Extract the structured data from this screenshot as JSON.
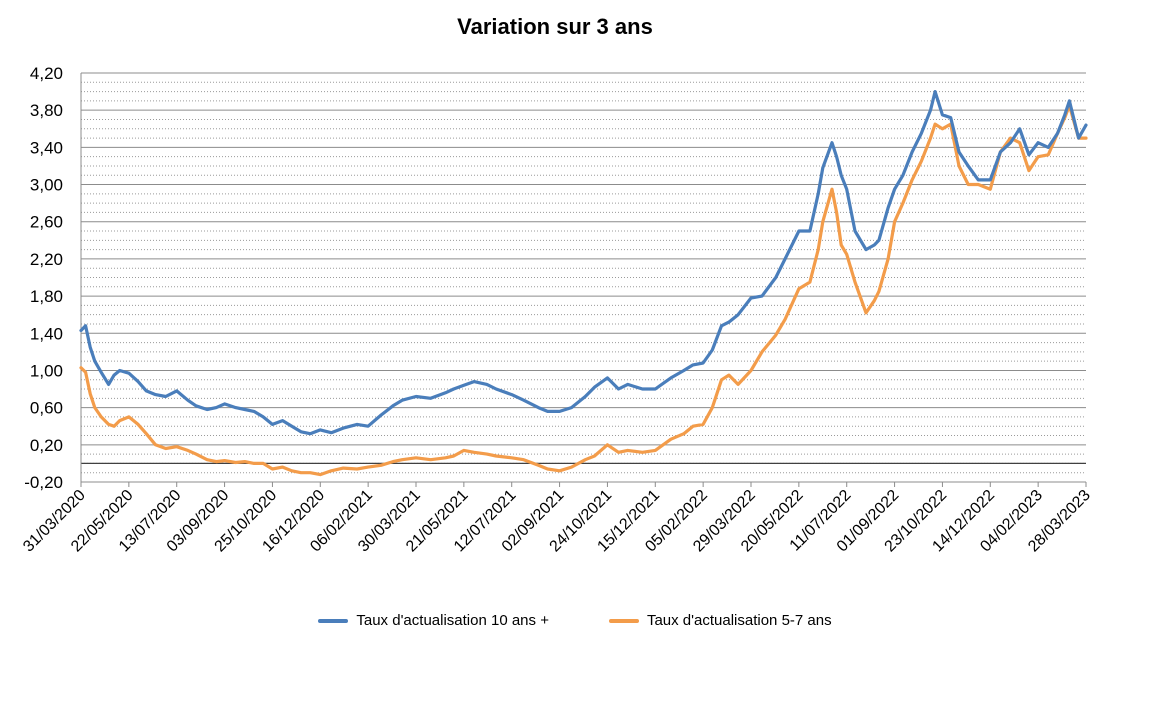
{
  "chart_data": {
    "type": "line",
    "title": "Variation sur 3 ans",
    "xlabel": "",
    "ylabel": "",
    "ylim": [
      -0.2,
      4.2
    ],
    "y_ticks": [
      "-0,20",
      "0,20",
      "0,60",
      "1,00",
      "1,40",
      "1,80",
      "2,20",
      "2,60",
      "3,00",
      "3,40",
      "3,80",
      "4,20"
    ],
    "x_ticks": [
      "31/03/2020",
      "22/05/2020",
      "13/07/2020",
      "03/09/2020",
      "25/10/2020",
      "16/12/2020",
      "06/02/2021",
      "30/03/2021",
      "21/05/2021",
      "12/07/2021",
      "02/09/2021",
      "24/10/2021",
      "15/12/2021",
      "05/02/2022",
      "29/03/2022",
      "20/05/2022",
      "11/07/2022",
      "01/09/2022",
      "23/10/2022",
      "14/12/2022",
      "04/02/2023",
      "28/03/2023"
    ],
    "grid": true,
    "legend_position": "bottom",
    "series": [
      {
        "name": "Taux d'actualisation 10 ans +",
        "color": "#4a7ebb",
        "x": [
          "31/03/2020",
          "05/04/2020",
          "10/04/2020",
          "15/04/2020",
          "22/04/2020",
          "30/04/2020",
          "06/05/2020",
          "12/05/2020",
          "22/05/2020",
          "01/06/2020",
          "10/06/2020",
          "20/06/2020",
          "01/07/2020",
          "13/07/2020",
          "25/07/2020",
          "03/08/2020",
          "15/08/2020",
          "25/08/2020",
          "03/09/2020",
          "15/09/2020",
          "25/09/2020",
          "05/10/2020",
          "15/10/2020",
          "25/10/2020",
          "05/11/2020",
          "15/11/2020",
          "25/11/2020",
          "05/12/2020",
          "16/12/2020",
          "28/12/2020",
          "10/01/2021",
          "25/01/2021",
          "06/02/2021",
          "20/02/2021",
          "05/03/2021",
          "15/03/2021",
          "30/03/2021",
          "15/04/2021",
          "01/05/2021",
          "10/05/2021",
          "21/05/2021",
          "01/06/2021",
          "15/06/2021",
          "25/06/2021",
          "12/07/2021",
          "25/07/2021",
          "10/08/2021",
          "20/08/2021",
          "02/09/2021",
          "15/09/2021",
          "30/09/2021",
          "10/10/2021",
          "24/10/2021",
          "05/11/2021",
          "15/11/2021",
          "01/12/2021",
          "15/12/2021",
          "01/01/2022",
          "15/01/2022",
          "25/01/2022",
          "05/02/2022",
          "15/02/2022",
          "25/02/2022",
          "05/03/2022",
          "15/03/2022",
          "29/03/2022",
          "10/04/2022",
          "25/04/2022",
          "05/05/2022",
          "20/05/2022",
          "01/06/2022",
          "10/06/2022",
          "15/06/2022",
          "25/06/2022",
          "30/06/2022",
          "05/07/2022",
          "11/07/2022",
          "20/07/2022",
          "01/08/2022",
          "10/08/2022",
          "15/08/2022",
          "25/08/2022",
          "01/09/2022",
          "10/09/2022",
          "20/09/2022",
          "30/09/2022",
          "10/10/2022",
          "15/10/2022",
          "23/10/2022",
          "01/11/2022",
          "10/11/2022",
          "20/11/2022",
          "01/12/2022",
          "14/12/2022",
          "25/12/2022",
          "05/01/2023",
          "15/01/2023",
          "25/01/2023",
          "04/02/2023",
          "15/02/2023",
          "25/02/2023",
          "05/03/2023",
          "10/03/2023",
          "20/03/2023",
          "28/03/2023"
        ],
        "values": [
          1.43,
          1.48,
          1.25,
          1.1,
          0.98,
          0.85,
          0.95,
          1.0,
          0.97,
          0.88,
          0.78,
          0.74,
          0.72,
          0.78,
          0.68,
          0.62,
          0.58,
          0.6,
          0.64,
          0.6,
          0.58,
          0.56,
          0.5,
          0.42,
          0.46,
          0.4,
          0.34,
          0.32,
          0.36,
          0.33,
          0.38,
          0.42,
          0.4,
          0.52,
          0.62,
          0.68,
          0.72,
          0.7,
          0.76,
          0.8,
          0.84,
          0.88,
          0.85,
          0.8,
          0.74,
          0.68,
          0.6,
          0.56,
          0.56,
          0.6,
          0.72,
          0.82,
          0.92,
          0.8,
          0.85,
          0.8,
          0.8,
          0.92,
          1.0,
          1.06,
          1.08,
          1.22,
          1.48,
          1.52,
          1.6,
          1.78,
          1.8,
          2.0,
          2.2,
          2.5,
          2.5,
          2.9,
          3.18,
          3.45,
          3.3,
          3.1,
          2.95,
          2.5,
          2.3,
          2.35,
          2.4,
          2.75,
          2.95,
          3.1,
          3.35,
          3.55,
          3.8,
          4.0,
          3.75,
          3.72,
          3.35,
          3.2,
          3.05,
          3.05,
          3.35,
          3.45,
          3.6,
          3.32,
          3.45,
          3.4,
          3.55,
          3.75,
          3.9,
          3.5,
          3.64
        ]
      },
      {
        "name": "Taux d'actualisation 5-7 ans",
        "color": "#f39c4a",
        "x": [
          "31/03/2020",
          "05/04/2020",
          "10/04/2020",
          "15/04/2020",
          "22/04/2020",
          "30/04/2020",
          "06/05/2020",
          "12/05/2020",
          "22/05/2020",
          "01/06/2020",
          "10/06/2020",
          "20/06/2020",
          "01/07/2020",
          "13/07/2020",
          "25/07/2020",
          "03/08/2020",
          "15/08/2020",
          "25/08/2020",
          "03/09/2020",
          "15/09/2020",
          "25/09/2020",
          "05/10/2020",
          "15/10/2020",
          "25/10/2020",
          "05/11/2020",
          "15/11/2020",
          "25/11/2020",
          "05/12/2020",
          "16/12/2020",
          "28/12/2020",
          "10/01/2021",
          "25/01/2021",
          "06/02/2021",
          "20/02/2021",
          "05/03/2021",
          "15/03/2021",
          "30/03/2021",
          "15/04/2021",
          "01/05/2021",
          "10/05/2021",
          "21/05/2021",
          "01/06/2021",
          "15/06/2021",
          "25/06/2021",
          "12/07/2021",
          "25/07/2021",
          "10/08/2021",
          "20/08/2021",
          "02/09/2021",
          "15/09/2021",
          "30/09/2021",
          "10/10/2021",
          "24/10/2021",
          "05/11/2021",
          "15/11/2021",
          "01/12/2021",
          "15/12/2021",
          "01/01/2022",
          "15/01/2022",
          "25/01/2022",
          "05/02/2022",
          "15/02/2022",
          "25/02/2022",
          "05/03/2022",
          "15/03/2022",
          "29/03/2022",
          "10/04/2022",
          "25/04/2022",
          "05/05/2022",
          "20/05/2022",
          "01/06/2022",
          "10/06/2022",
          "15/06/2022",
          "25/06/2022",
          "30/06/2022",
          "05/07/2022",
          "11/07/2022",
          "20/07/2022",
          "01/08/2022",
          "10/08/2022",
          "15/08/2022",
          "25/08/2022",
          "01/09/2022",
          "10/09/2022",
          "20/09/2022",
          "30/09/2022",
          "10/10/2022",
          "15/10/2022",
          "23/10/2022",
          "01/11/2022",
          "10/11/2022",
          "20/11/2022",
          "01/12/2022",
          "14/12/2022",
          "25/12/2022",
          "05/01/2023",
          "15/01/2023",
          "25/01/2023",
          "04/02/2023",
          "15/02/2023",
          "25/02/2023",
          "05/03/2023",
          "10/03/2023",
          "20/03/2023",
          "28/03/2023"
        ],
        "values": [
          1.03,
          0.98,
          0.75,
          0.6,
          0.5,
          0.42,
          0.4,
          0.46,
          0.5,
          0.42,
          0.32,
          0.2,
          0.16,
          0.18,
          0.14,
          0.1,
          0.04,
          0.02,
          0.03,
          0.01,
          0.02,
          0.0,
          0.0,
          -0.06,
          -0.04,
          -0.08,
          -0.1,
          -0.1,
          -0.12,
          -0.08,
          -0.05,
          -0.06,
          -0.04,
          -0.02,
          0.02,
          0.04,
          0.06,
          0.04,
          0.06,
          0.08,
          0.14,
          0.12,
          0.1,
          0.08,
          0.06,
          0.04,
          -0.02,
          -0.06,
          -0.08,
          -0.04,
          0.04,
          0.08,
          0.2,
          0.12,
          0.14,
          0.12,
          0.14,
          0.26,
          0.32,
          0.4,
          0.42,
          0.6,
          0.9,
          0.95,
          0.85,
          1.0,
          1.2,
          1.38,
          1.55,
          1.88,
          1.95,
          2.3,
          2.6,
          2.95,
          2.7,
          2.35,
          2.25,
          1.95,
          1.62,
          1.75,
          1.85,
          2.2,
          2.6,
          2.8,
          3.05,
          3.25,
          3.5,
          3.65,
          3.6,
          3.65,
          3.2,
          3.0,
          3.0,
          2.95,
          3.35,
          3.5,
          3.45,
          3.15,
          3.3,
          3.32,
          3.55,
          3.72,
          3.85,
          3.5,
          3.5
        ]
      }
    ]
  }
}
